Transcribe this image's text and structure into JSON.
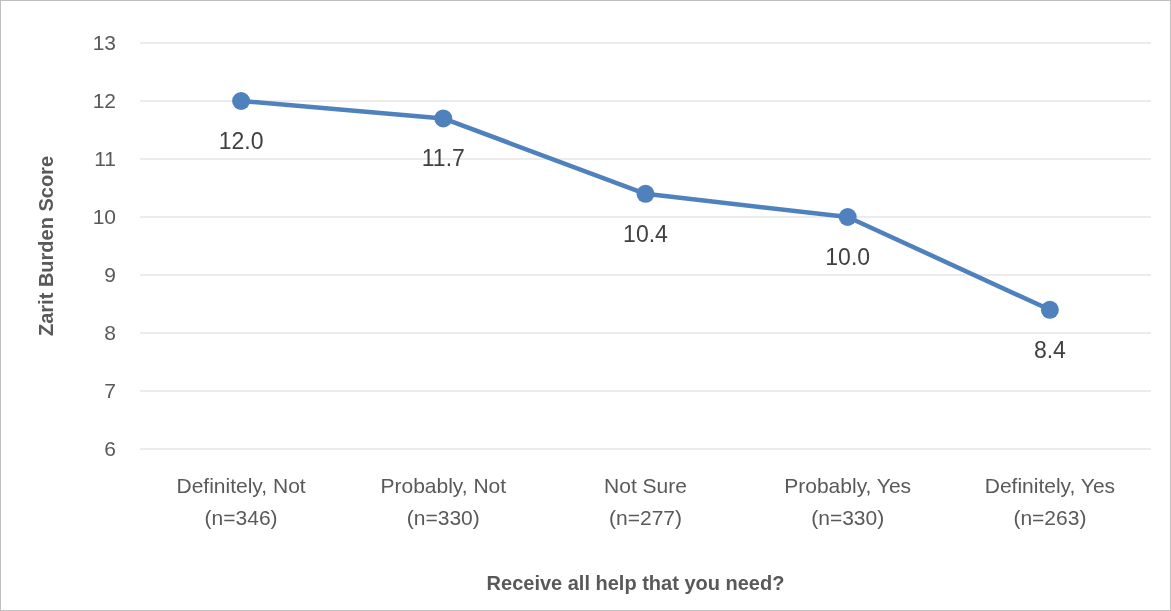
{
  "chart_data": {
    "type": "line",
    "xlabel": "Receive all help that you need?",
    "ylabel": "Zarit Burden Score",
    "categories": [
      "Definitely, Not\n(n=346)",
      "Probably, Not\n(n=330)",
      "Not Sure\n(n=277)",
      "Probably, Yes\n(n=330)",
      "Definitely, Yes\n(n=263)"
    ],
    "series": [
      {
        "color": "#4f81bd",
        "values": [
          12.0,
          11.7,
          10.4,
          10.0,
          8.4
        ],
        "value_labels": [
          "12.0",
          "11.7",
          "10.4",
          "10.0",
          "8.4"
        ]
      }
    ],
    "ylim": [
      6,
      13
    ],
    "yticks": [
      6,
      7,
      8,
      9,
      10,
      11,
      12,
      13
    ],
    "grid": "y",
    "marker": "circle",
    "line_style": "solid"
  }
}
